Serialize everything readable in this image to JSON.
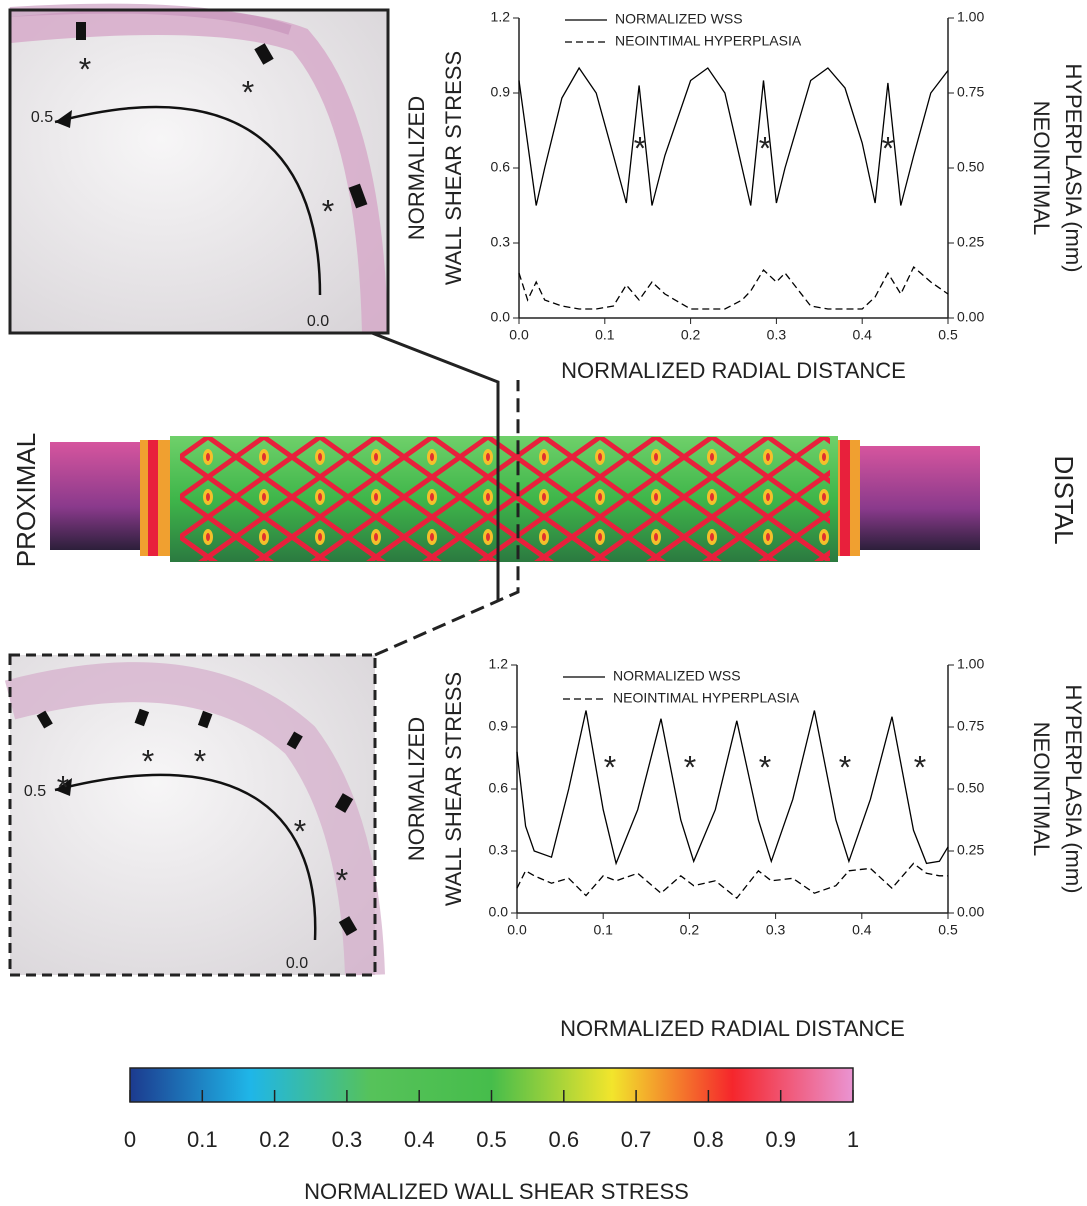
{
  "chart_data": [
    {
      "type": "line",
      "xlabel": "NORMALIZED RADIAL DISTANCE",
      "ylabel": [
        "NORMALIZED",
        "WALL SHEAR STRESS"
      ],
      "y2label": [
        "NEOINTIMAL",
        "HYPERPLASIA (mm)"
      ],
      "x": [
        0,
        0.01,
        0.02,
        0.03,
        0.05,
        0.07,
        0.09,
        0.11,
        0.125,
        0.14,
        0.155,
        0.17,
        0.2,
        0.22,
        0.24,
        0.26,
        0.27,
        0.285,
        0.3,
        0.31,
        0.34,
        0.36,
        0.38,
        0.4,
        0.415,
        0.43,
        0.445,
        0.46,
        0.48,
        0.5
      ],
      "xlim": [
        0,
        0.5
      ],
      "xticks": [
        {
          "value": 0,
          "label": "0.0"
        },
        0.1,
        0.2,
        0.3,
        0.4,
        0.5
      ],
      "ylim": [
        0,
        1.2
      ],
      "yticks": [
        {
          "value": 0,
          "label": "0.0"
        },
        0.3,
        0.6,
        0.9,
        1.2
      ],
      "y2lim": [
        0,
        1
      ],
      "y2ticks": [
        {
          "value": 0,
          "label": "0.00"
        },
        {
          "value": 0.25,
          "label": "0.25"
        },
        {
          "value": 0.5,
          "label": "0.50"
        },
        {
          "value": 0.75,
          "label": "0.75"
        },
        {
          "value": 1,
          "label": "1.00"
        }
      ],
      "series": [
        {
          "name": "NORMALIZED WSS",
          "color": "#000000",
          "line_style": "solid",
          "values": [
            0.95,
            0.7,
            0.45,
            0.6,
            0.88,
            1.0,
            0.9,
            0.65,
            0.46,
            0.93,
            0.45,
            0.65,
            0.95,
            1.0,
            0.9,
            0.6,
            0.45,
            0.95,
            0.46,
            0.6,
            0.95,
            1.0,
            0.92,
            0.7,
            0.46,
            0.94,
            0.45,
            0.65,
            0.9,
            0.99
          ]
        },
        {
          "name": "NEOINTIMAL HYPERPLASIA",
          "color": "#000000",
          "line_style": "dashed",
          "axis": "y2",
          "values": [
            0.15,
            0.06,
            0.12,
            0.06,
            0.04,
            0.03,
            0.03,
            0.04,
            0.11,
            0.06,
            0.12,
            0.08,
            0.03,
            0.03,
            0.03,
            0.06,
            0.09,
            0.16,
            0.12,
            0.15,
            0.04,
            0.03,
            0.03,
            0.03,
            0.07,
            0.15,
            0.08,
            0.17,
            0.12,
            0.08
          ]
        }
      ],
      "annotations": [
        "*",
        "*",
        "*"
      ]
    },
    {
      "type": "line",
      "xlabel": "NORMALIZED RADIAL DISTANCE",
      "ylabel": [
        "NORMALIZED",
        "WALL SHEAR STRESS"
      ],
      "y2label": [
        "NEOINTIMAL",
        "HYPERPLASIA (mm)"
      ],
      "x": [
        0,
        0.01,
        0.02,
        0.04,
        0.06,
        0.08,
        0.1,
        0.115,
        0.14,
        0.167,
        0.19,
        0.205,
        0.23,
        0.255,
        0.28,
        0.295,
        0.32,
        0.345,
        0.37,
        0.385,
        0.41,
        0.435,
        0.46,
        0.475,
        0.49,
        0.5
      ],
      "xlim": [
        0,
        0.5
      ],
      "xticks": [
        {
          "value": 0,
          "label": "0.0"
        },
        0.1,
        0.2,
        0.3,
        0.4,
        0.5
      ],
      "ylim": [
        0,
        1.2
      ],
      "yticks": [
        {
          "value": 0,
          "label": "0.0"
        },
        0.3,
        0.6,
        0.9,
        1.2
      ],
      "y2lim": [
        0,
        1
      ],
      "y2ticks": [
        {
          "value": 0,
          "label": "0.00"
        },
        {
          "value": 0.25,
          "label": "0.25"
        },
        {
          "value": 0.5,
          "label": "0.50"
        },
        {
          "value": 0.75,
          "label": "0.75"
        },
        {
          "value": 1,
          "label": "1.00"
        }
      ],
      "series": [
        {
          "name": "NORMALIZED WSS",
          "color": "#000000",
          "line_style": "solid",
          "values": [
            0.78,
            0.42,
            0.3,
            0.27,
            0.6,
            0.98,
            0.5,
            0.24,
            0.5,
            0.94,
            0.45,
            0.25,
            0.5,
            0.93,
            0.45,
            0.25,
            0.55,
            0.98,
            0.45,
            0.25,
            0.55,
            0.95,
            0.4,
            0.24,
            0.25,
            0.32
          ]
        },
        {
          "name": "NEOINTIMAL HYPERPLASIA",
          "color": "#000000",
          "line_style": "dashed",
          "axis": "y2",
          "values": [
            0.1,
            0.17,
            0.15,
            0.12,
            0.14,
            0.07,
            0.15,
            0.13,
            0.16,
            0.08,
            0.15,
            0.11,
            0.13,
            0.06,
            0.17,
            0.13,
            0.14,
            0.08,
            0.11,
            0.17,
            0.18,
            0.1,
            0.2,
            0.16,
            0.15,
            0.15
          ]
        }
      ],
      "annotations": [
        "*",
        "*",
        "*",
        "*",
        "*"
      ]
    },
    {
      "type": "colorbar",
      "title": "NORMALIZED WALL SHEAR STRESS",
      "xlim": [
        0,
        1
      ],
      "xticks": [
        0,
        0.1,
        0.2,
        0.3,
        0.4,
        0.5,
        0.6,
        0.7,
        0.8,
        0.9,
        1
      ],
      "colors": [
        "#1c3a8e",
        "#1fb6e8",
        "#56c25a",
        "#46bd4b",
        "#f2e52c",
        "#f5262c",
        "#ea94d2"
      ]
    }
  ],
  "stent": {
    "left_label": "PROXIMAL",
    "right_label": "DISTAL"
  },
  "images": [
    {
      "labels": [
        "0.5",
        "0.0"
      ],
      "markers": [
        "*",
        "*",
        "*"
      ]
    },
    {
      "labels": [
        "0.5",
        "0.0"
      ],
      "markers": [
        "*",
        "*",
        "*",
        "*",
        "*"
      ]
    }
  ]
}
